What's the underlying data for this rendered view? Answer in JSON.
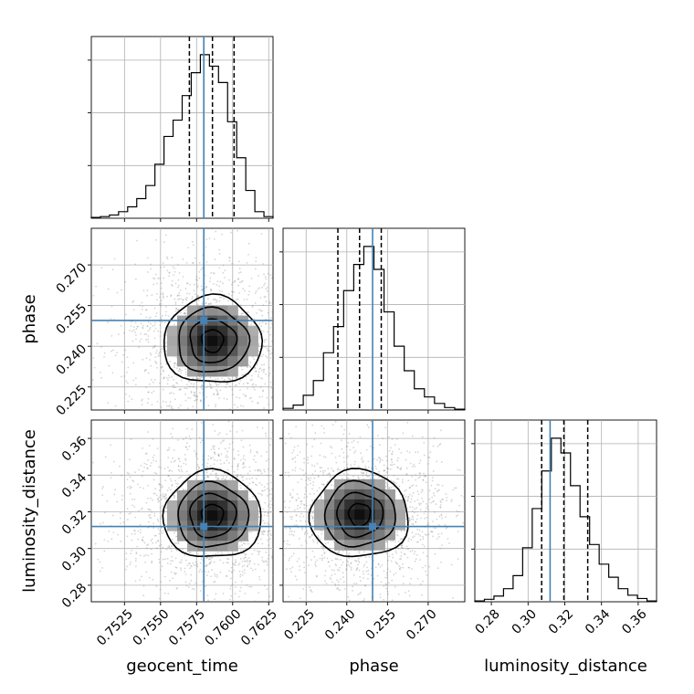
{
  "chart_data": {
    "type": "corner",
    "parameters": [
      {
        "name": "geocent_time",
        "label": "geocent_time",
        "range": [
          0.7502,
          0.7628
        ],
        "ticks": [
          0.7525,
          0.755,
          0.7575,
          0.76,
          0.7625
        ],
        "tick_labels": [
          "0.7525",
          "0.7550",
          "0.7575",
          "0.7600",
          "0.7625"
        ],
        "truth": 0.758,
        "quantiles": [
          0.757,
          0.7586,
          0.7601
        ],
        "hist": [
          0.5,
          1,
          2,
          4,
          7,
          12,
          20,
          33,
          50,
          60,
          75,
          89,
          100,
          93,
          83,
          59,
          37,
          17,
          4,
          1
        ]
      },
      {
        "name": "phase",
        "label": "phase",
        "range": [
          0.2165,
          0.2835
        ],
        "ticks": [
          0.225,
          0.24,
          0.255,
          0.27
        ],
        "tick_labels": [
          "0.225",
          "0.240",
          "0.255",
          "0.270"
        ],
        "truth": 0.2495,
        "quantiles": [
          0.2367,
          0.2447,
          0.2527
        ],
        "hist": [
          1,
          3,
          9,
          18,
          35,
          51,
          73,
          89,
          100,
          86,
          60,
          39,
          24,
          13,
          8,
          4,
          1.5,
          0.5
        ]
      },
      {
        "name": "luminosity_distance",
        "label": "luminosity_distance",
        "range": [
          0.271,
          0.37
        ],
        "ticks": [
          0.28,
          0.3,
          0.32,
          0.34,
          0.36
        ],
        "tick_labels": [
          "0.28",
          "0.30",
          "0.32",
          "0.34",
          "0.36"
        ],
        "truth": 0.312,
        "quantiles": [
          0.3074,
          0.3195,
          0.3325
        ],
        "hist": [
          0.5,
          1.5,
          3.5,
          8,
          16,
          33,
          57,
          80,
          100,
          91,
          71,
          52,
          35,
          23,
          15,
          8,
          4,
          2,
          0.5
        ]
      }
    ],
    "pair_peaks": {
      "0_1": [
        0.7586,
        0.242
      ],
      "0_2": [
        0.7586,
        0.318
      ],
      "1_2": [
        0.2447,
        0.3185
      ]
    },
    "grid": true,
    "truth_color": "#4682b4",
    "quantile_style": "dashed"
  }
}
